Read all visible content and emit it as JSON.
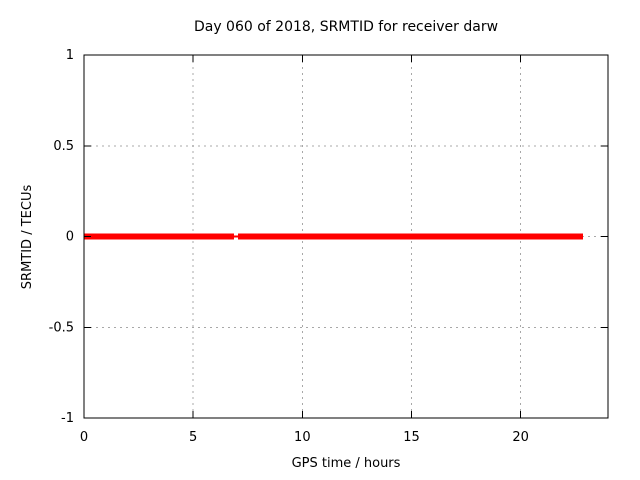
{
  "chart_data": {
    "type": "line",
    "title": "Day 060 of 2018, SRMTID for receiver darw",
    "xlabel": "GPS time / hours",
    "ylabel": "SRMTID / TECUs",
    "xlim": [
      0,
      24
    ],
    "ylim": [
      -1,
      1
    ],
    "xticks": [
      0,
      5,
      10,
      15,
      20
    ],
    "yticks": [
      -1,
      -0.5,
      0,
      0.5,
      1
    ],
    "grid": true,
    "legend": "none",
    "series": [
      {
        "color": "#ff0000",
        "y_value": 0,
        "thick_segments_x": [
          [
            0,
            6.87
          ],
          [
            7.05,
            22.86
          ]
        ],
        "thin_segments_x": [
          [
            6.87,
            7.05
          ]
        ]
      }
    ],
    "colors": {
      "series": "#ff0000",
      "grid": "#a8a8a8",
      "axis": "#000000",
      "background": "#ffffff",
      "text": "#000000"
    }
  }
}
